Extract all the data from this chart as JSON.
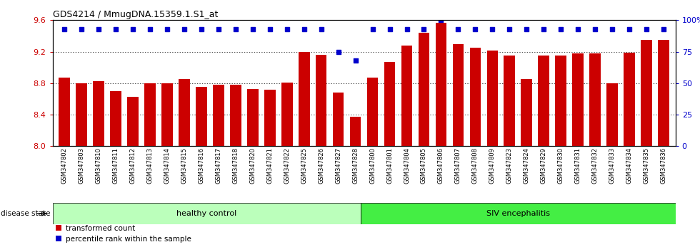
{
  "title": "GDS4214 / MmugDNA.15359.1.S1_at",
  "samples": [
    "GSM347802",
    "GSM347803",
    "GSM347810",
    "GSM347811",
    "GSM347812",
    "GSM347813",
    "GSM347814",
    "GSM347815",
    "GSM347816",
    "GSM347817",
    "GSM347818",
    "GSM347820",
    "GSM347821",
    "GSM347822",
    "GSM347825",
    "GSM347826",
    "GSM347827",
    "GSM347828",
    "GSM347800",
    "GSM347801",
    "GSM347804",
    "GSM347805",
    "GSM347806",
    "GSM347807",
    "GSM347808",
    "GSM347809",
    "GSM347823",
    "GSM347824",
    "GSM347829",
    "GSM347830",
    "GSM347831",
    "GSM347832",
    "GSM347833",
    "GSM347834",
    "GSM347835",
    "GSM347836"
  ],
  "bar_values": [
    8.87,
    8.8,
    8.83,
    8.7,
    8.63,
    8.8,
    8.8,
    8.85,
    8.75,
    8.78,
    8.78,
    8.73,
    8.72,
    8.81,
    9.2,
    9.16,
    8.68,
    8.37,
    8.87,
    9.07,
    9.28,
    9.44,
    9.57,
    9.3,
    9.25,
    9.21,
    9.15,
    8.85,
    9.15,
    9.15,
    9.18,
    9.18,
    8.8,
    9.19,
    9.35,
    9.35
  ],
  "percentile_values": [
    93,
    93,
    93,
    93,
    93,
    93,
    93,
    93,
    93,
    93,
    93,
    93,
    93,
    93,
    93,
    93,
    75,
    68,
    93,
    93,
    93,
    93,
    100,
    93,
    93,
    93,
    93,
    93,
    93,
    93,
    93,
    93,
    93,
    93,
    93,
    93
  ],
  "bar_color": "#cc0000",
  "percentile_color": "#0000cc",
  "ylim_left": [
    8.0,
    9.6
  ],
  "ylim_right": [
    0,
    100
  ],
  "yticks_left": [
    8.0,
    8.4,
    8.8,
    9.2,
    9.6
  ],
  "yticks_right": [
    0,
    25,
    50,
    75,
    100
  ],
  "ytick_labels_right": [
    "0",
    "25",
    "50",
    "75",
    "100%"
  ],
  "healthy_count": 18,
  "healthy_label": "healthy control",
  "siv_label": "SIV encephalitis",
  "healthy_color": "#bbffbb",
  "siv_color": "#44ee44",
  "disease_state_label": "disease state",
  "legend_bar_label": "transformed count",
  "legend_pct_label": "percentile rank within the sample",
  "background_color": "#ffffff",
  "grid_color": "#000000"
}
